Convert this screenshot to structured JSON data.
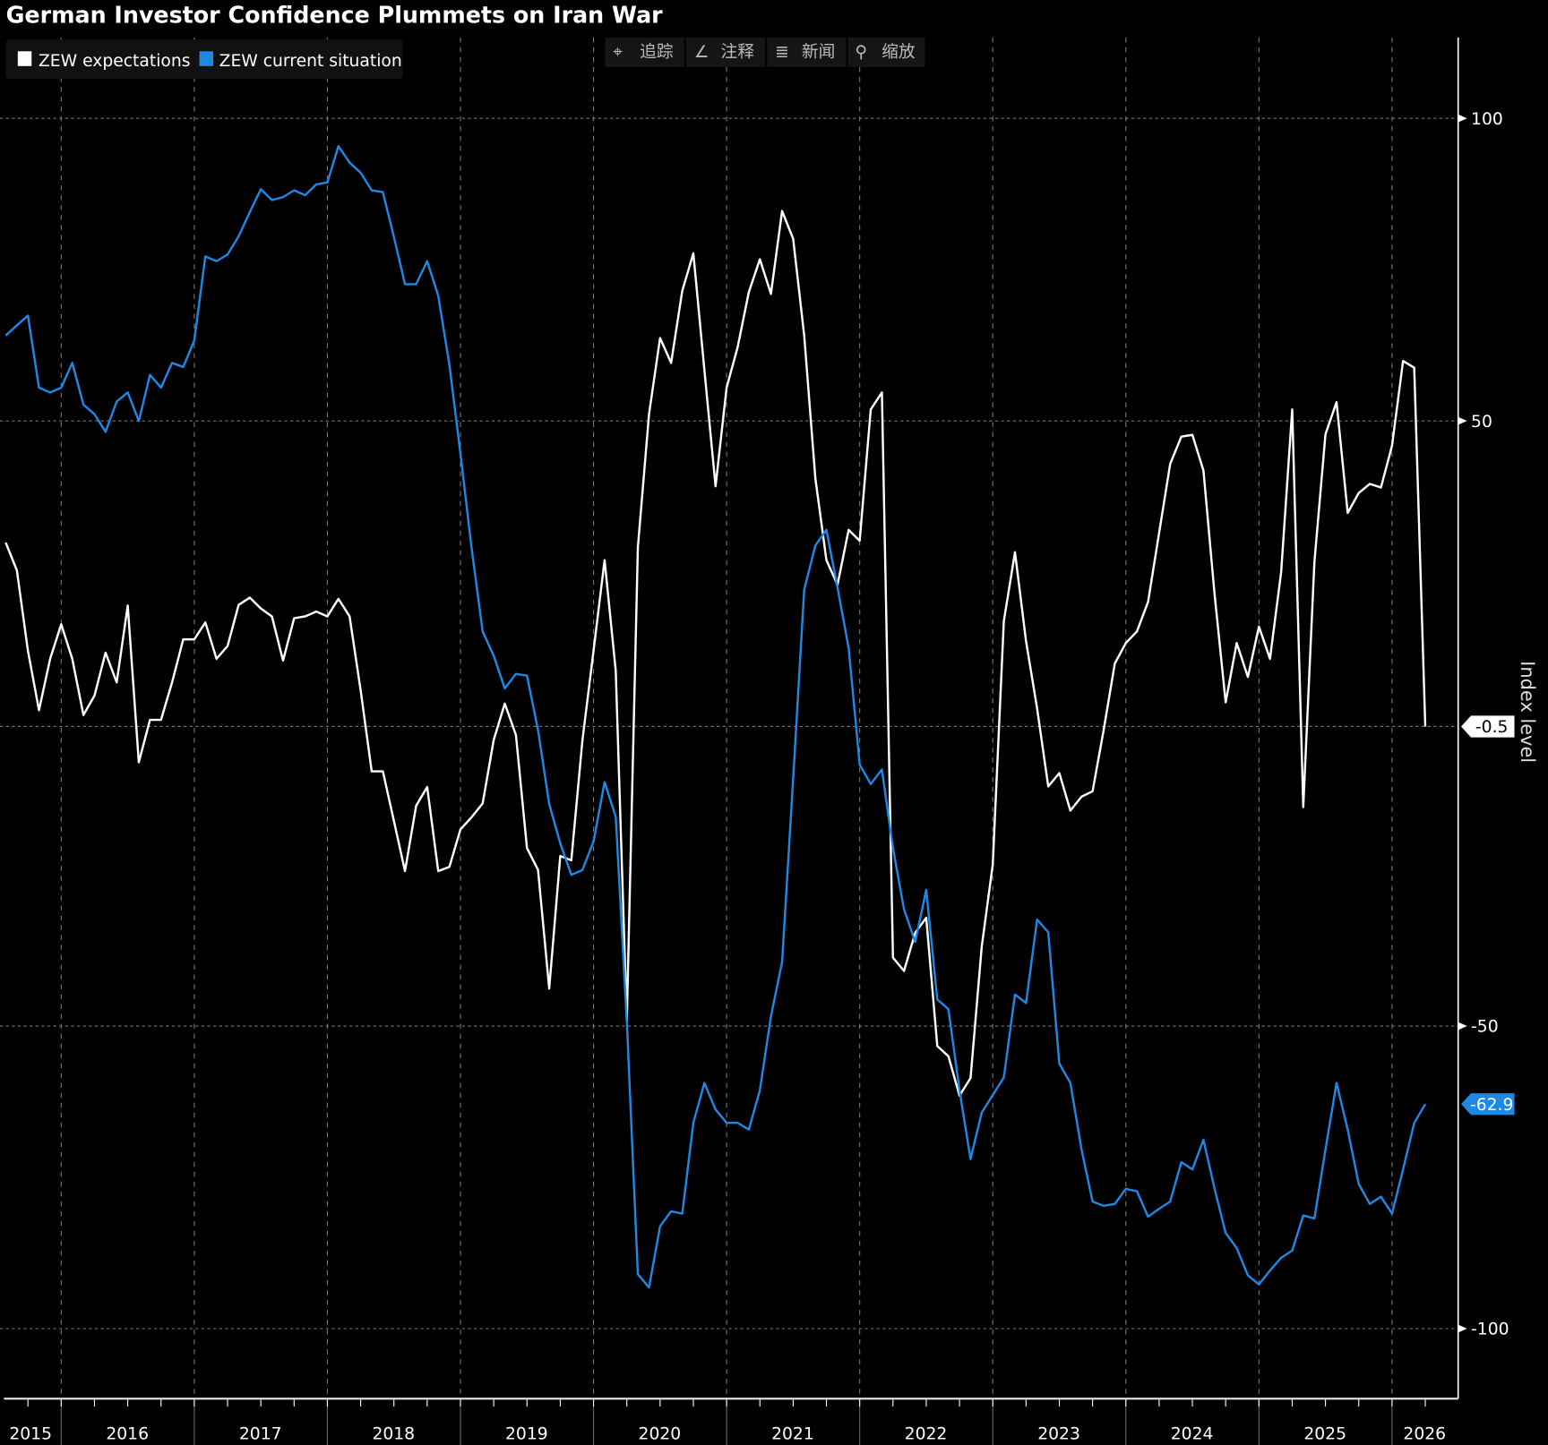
{
  "chart_data": {
    "type": "line",
    "title": "German Investor Confidence Plummets on Iran War",
    "ylabel": "Index level",
    "xlabel": "",
    "ylim": [
      -112,
      113
    ],
    "y_ticks": [
      "100",
      "50",
      "-50",
      "-100"
    ],
    "y_tick_values": [
      100,
      50,
      -50,
      -100
    ],
    "x_tick_labels": [
      "2015",
      "2016",
      "2017",
      "2018",
      "2019",
      "2020",
      "2021",
      "2022",
      "2023",
      "2024",
      "2025",
      "2026"
    ],
    "start": "2015-08",
    "frequency": "monthly",
    "grid": true,
    "legend_position": "top-left",
    "series": [
      {
        "name": "ZEW expectations",
        "color": "#ffffff",
        "last_label": "-0.5",
        "values": [
          29.9,
          25.3,
          12,
          2.2,
          10.7,
          16.4,
          10.7,
          1.4,
          4.6,
          11.7,
          6.8,
          19.5,
          -6.4,
          0.6,
          0.6,
          6.8,
          13.9,
          13.9,
          16.7,
          10.7,
          12.8,
          19.6,
          20.8,
          19.0,
          17.7,
          10.4,
          17.4,
          17.7,
          18.5,
          17.7,
          20.6,
          17.7,
          5.5,
          -7.9,
          -7.9,
          -16.1,
          -24.4,
          -13.6,
          -10.5,
          -24.4,
          -23.7,
          -17.5,
          -15.5,
          -13.2,
          -2.7,
          3.3,
          -1.9,
          -20.6,
          -24.2,
          -43.8,
          -21.9,
          -22.6,
          -2.7,
          12,
          27,
          8.7,
          -49.1,
          29.1,
          51.1,
          63.7,
          59.6,
          71.5,
          77.7,
          58.4,
          39.2,
          55.5,
          62.2,
          71.3,
          76.7,
          71,
          84.7,
          80.1,
          64.1,
          40.5,
          27,
          22.9,
          32,
          30.2,
          51.9,
          54.7,
          -38.7,
          -40.9,
          -34.6,
          -32.1,
          -53.3,
          -55,
          -61.5,
          -58.6,
          -36.9,
          -23.3,
          16.9,
          28.3,
          13.6,
          2.5,
          -10.4,
          -8.2,
          -14.4,
          -12.1,
          -11.2,
          -1.1,
          9.9,
          13.3,
          15.2,
          20.1,
          31.5,
          42.9,
          47.4,
          47.7,
          41.8,
          21.3,
          3.5,
          13.3,
          7.7,
          16,
          10.7,
          25,
          51.9,
          -13.8,
          26.7,
          47.8,
          53.1,
          34.8,
          38.1,
          39.6,
          39,
          45.9,
          59.9,
          58.8,
          -0.5
        ]
      },
      {
        "name": "ZEW current situation",
        "color": "#1e88e5",
        "last_label": "-62.9",
        "values": [
          64.1,
          65.8,
          67.4,
          55.5,
          54.7,
          55.5,
          59.6,
          52.7,
          51.1,
          48.2,
          53.2,
          54.7,
          50,
          57.6,
          55.5,
          59.6,
          58.9,
          63.3,
          77.2,
          76.4,
          77.5,
          80.5,
          84.5,
          88.3,
          86.5,
          87,
          88.1,
          87.3,
          89.1,
          89.4,
          95.4,
          92.7,
          91,
          88.1,
          87.8,
          80.4,
          72.6,
          72.6,
          76.4,
          70.7,
          59.3,
          44.6,
          29.1,
          15.2,
          11.2,
          5.8,
          8.2,
          7.9,
          -1.1,
          -13.3,
          -19.8,
          -25,
          -24.2,
          -19.5,
          -9.7,
          -15.4,
          -49.1,
          -91,
          -93.2,
          -83.1,
          -80.6,
          -81,
          -66,
          -59.4,
          -63.8,
          -66,
          -66,
          -67.1,
          -60.6,
          -48.4,
          -39.4,
          -9.2,
          22.1,
          29.4,
          32,
          22.5,
          12.5,
          -6.8,
          -10.0,
          -7.6,
          -20.6,
          -30.7,
          -36.1,
          -27.5,
          -45.6,
          -47.2,
          -60.6,
          -72,
          -64.3,
          -61.4,
          -58.5,
          -44.8,
          -46.2,
          -32.4,
          -34.5,
          -56.2,
          -59.4,
          -70.4,
          -79,
          -79.7,
          -79.4,
          -76.9,
          -77.3,
          -81.5,
          -80.2,
          -79,
          -72.5,
          -73.7,
          -68.8,
          -76.9,
          -84.2,
          -86.7,
          -91.2,
          -92.7,
          -90.4,
          -88.3,
          -87.1,
          -81.3,
          -81.8,
          -70.4,
          -59.4,
          -67.1,
          -76.1,
          -79.4,
          -78.2,
          -81,
          -73.7,
          -66,
          -62.9
        ]
      }
    ]
  },
  "toolbar": {
    "track": "追踪",
    "annotate": "注释",
    "news": "新闻",
    "zoom": "缩放"
  }
}
